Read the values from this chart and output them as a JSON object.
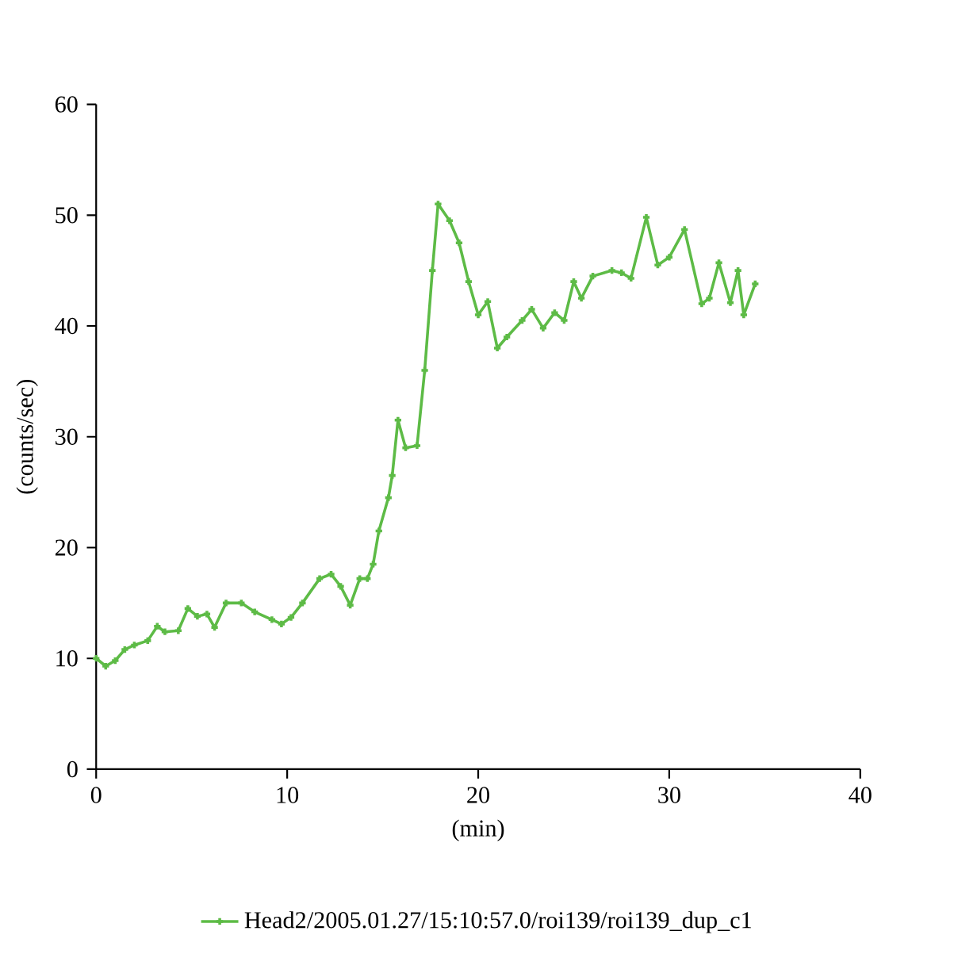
{
  "chart_data": {
    "type": "line",
    "xlabel": "(min)",
    "ylabel": "(counts/sec)",
    "xlim": [
      0,
      40
    ],
    "ylim": [
      0,
      60
    ],
    "xticks": [
      0,
      10,
      20,
      30,
      40
    ],
    "yticks": [
      0,
      10,
      20,
      30,
      40,
      50,
      60
    ],
    "legend": "bottom",
    "marker": "cross",
    "line_style": "solid",
    "series": [
      {
        "name": "Head2/2005.01.27/15:10:57.0/roi139/roi139_dup_c1",
        "color": "#5dbb46",
        "x": [
          0,
          0.5,
          1,
          1.5,
          2,
          2.7,
          3.2,
          3.6,
          4.3,
          4.8,
          5.3,
          5.8,
          6.2,
          6.8,
          7.6,
          8.3,
          9.2,
          9.7,
          10.2,
          10.8,
          11.7,
          12.3,
          12.8,
          13.3,
          13.8,
          14.2,
          14.5,
          14.8,
          15.3,
          15.5,
          15.8,
          16.2,
          16.8,
          17.2,
          17.6,
          17.9,
          18.5,
          19,
          19.5,
          20,
          20.5,
          21,
          21.5,
          22.3,
          22.8,
          23.4,
          24,
          24.5,
          25,
          25.4,
          26,
          27,
          27.5,
          28,
          28.8,
          29.4,
          30,
          30.8,
          31.7,
          32.1,
          32.6,
          33.2,
          33.6,
          33.9,
          34.5
        ],
        "values": [
          10,
          9.3,
          9.8,
          10.8,
          11.2,
          11.6,
          12.9,
          12.4,
          12.5,
          14.5,
          13.8,
          14,
          12.8,
          15,
          15,
          14.2,
          13.5,
          13.1,
          13.7,
          15,
          17.2,
          17.6,
          16.5,
          14.8,
          17.2,
          17.2,
          18.5,
          21.5,
          24.5,
          26.5,
          31.5,
          29,
          29.2,
          36,
          45,
          51,
          49.5,
          47.5,
          44,
          41,
          42.2,
          38,
          39,
          40.5,
          41.5,
          39.8,
          41.2,
          40.5,
          44,
          42.5,
          44.5,
          45,
          44.8,
          44.3,
          49.8,
          45.5,
          46.2,
          48.7,
          42,
          42.5,
          45.7,
          42.1,
          45,
          41,
          43.8
        ]
      }
    ]
  }
}
